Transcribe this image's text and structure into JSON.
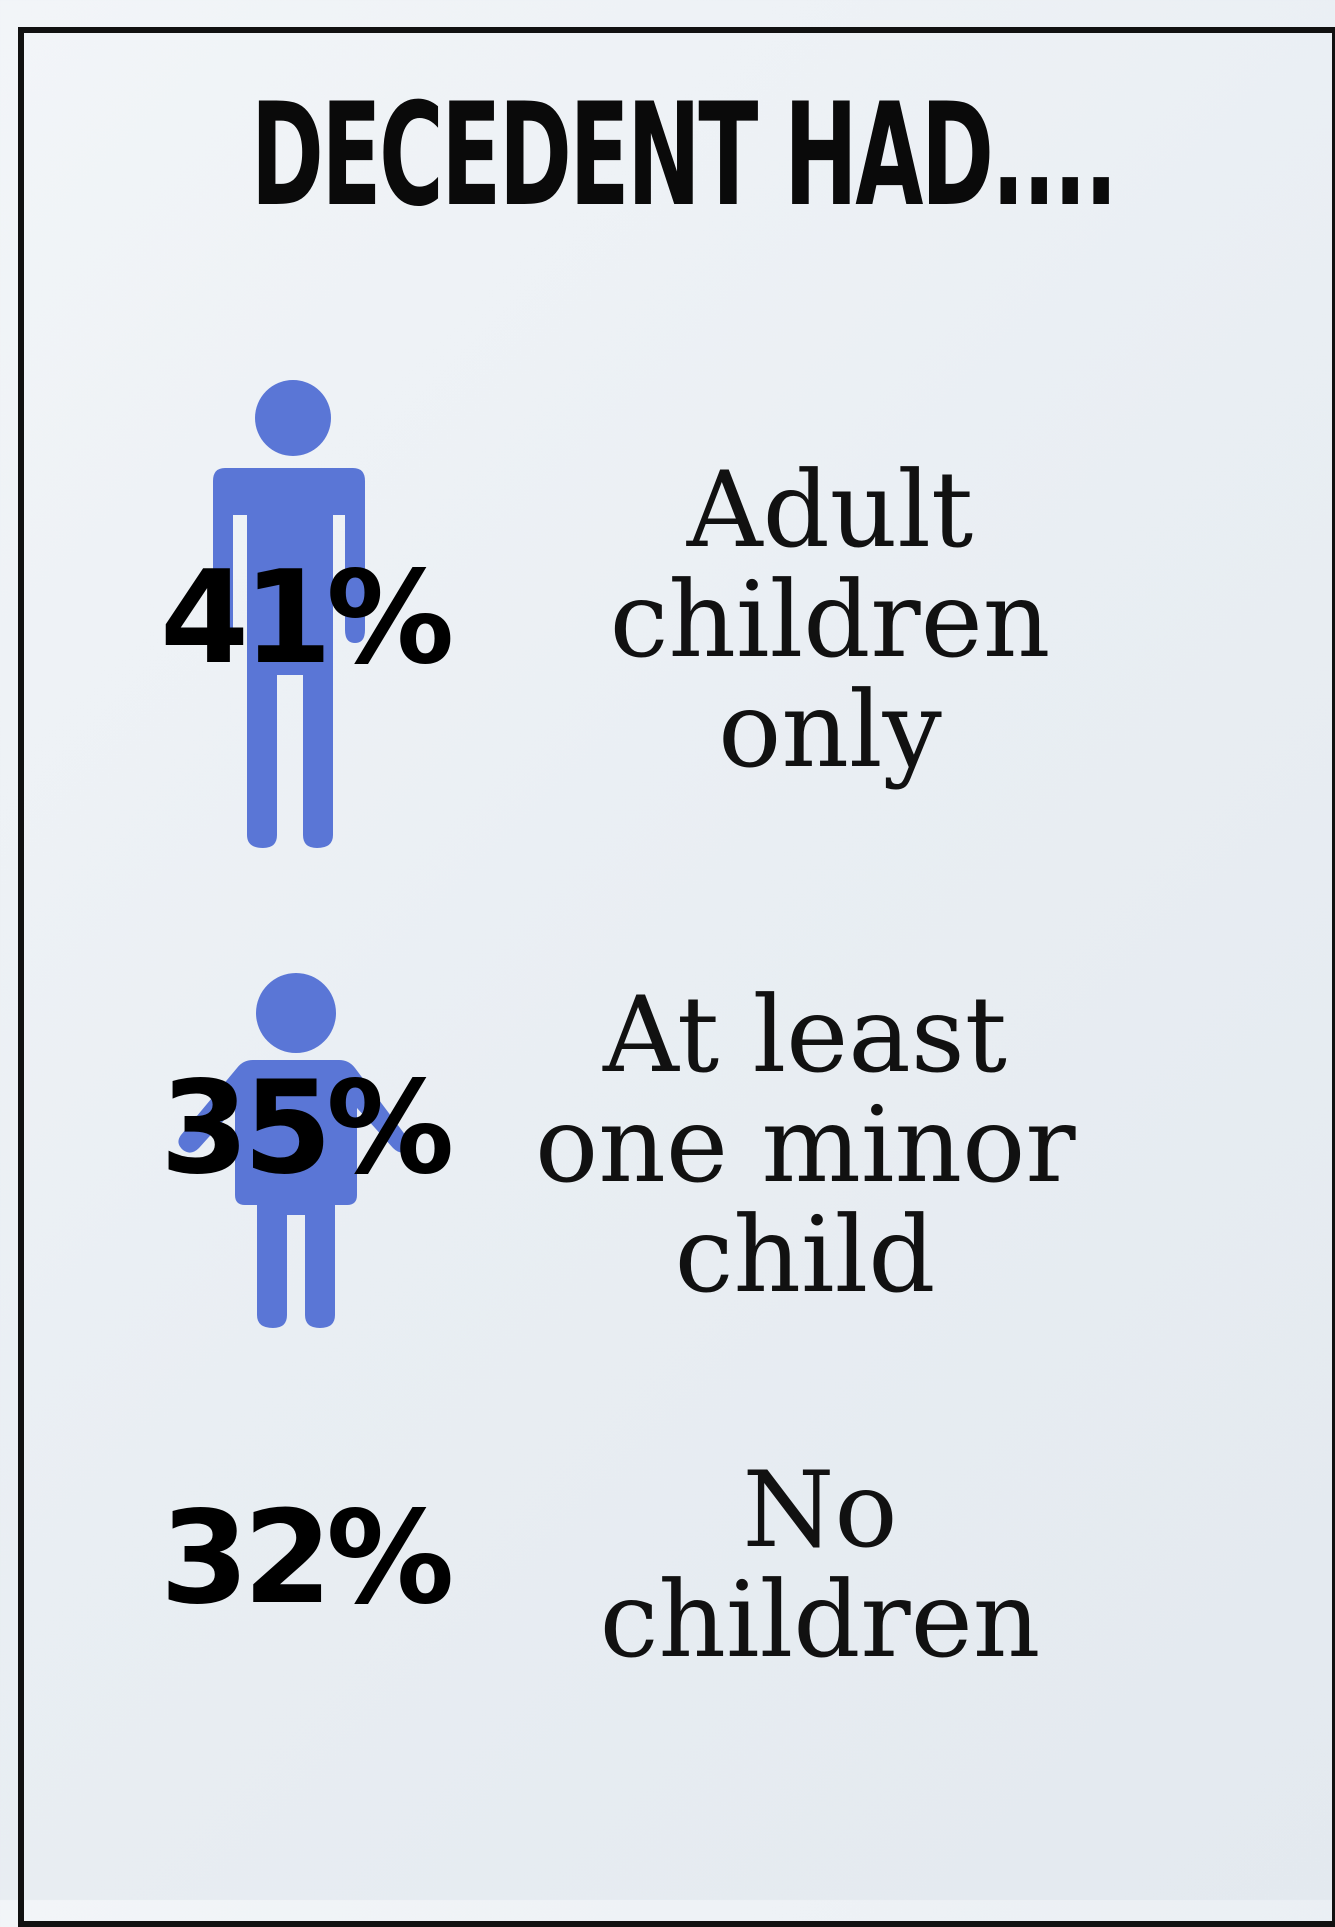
{
  "title": "DECEDENT HAD....",
  "colors": {
    "figure": "#5a76d6",
    "text": "#000000",
    "frame": "#111111"
  },
  "chart_data": {
    "type": "bar",
    "title": "DECEDENT HAD....",
    "categories": [
      "Adult children only",
      "At least one minor child",
      "No children"
    ],
    "values": [
      41,
      35,
      32
    ],
    "unit": "%"
  },
  "stats": [
    {
      "pct": "41%",
      "value": 41,
      "label_lines": [
        "Adult",
        "children",
        "only"
      ],
      "icon": "adult-person-icon"
    },
    {
      "pct": "35%",
      "value": 35,
      "label_lines": [
        "At least",
        "one minor",
        "child"
      ],
      "icon": "child-person-icon"
    },
    {
      "pct": "32%",
      "value": 32,
      "label_lines": [
        "No",
        "children"
      ],
      "icon": ""
    }
  ]
}
